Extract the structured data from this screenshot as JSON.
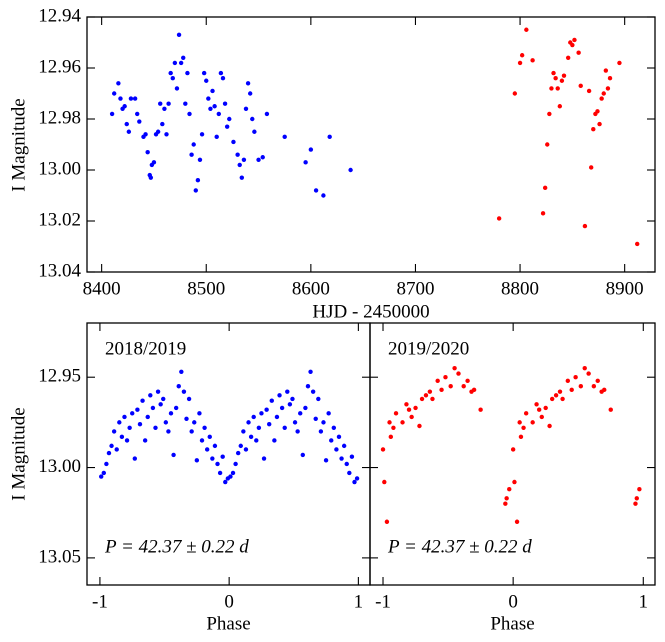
{
  "chart_data": [
    {
      "type": "scatter",
      "xlabel": "HJD - 2450000",
      "ylabel": "I Magnitude",
      "xlim": [
        8386,
        8929
      ],
      "ylim": [
        12.94,
        13.04
      ],
      "y_inverted": true,
      "xticks": [
        8400,
        8500,
        8600,
        8700,
        8800,
        8900
      ],
      "yticks": [
        12.94,
        12.96,
        12.98,
        {
          "value": 13,
          "label": "13.00"
        },
        13.02,
        13.04
      ],
      "series": [
        {
          "color": "#0000ff",
          "x": [
            8410,
            8412,
            8416,
            8418,
            8420,
            8422,
            8424,
            8426,
            8428,
            8432,
            8434,
            8436,
            8440,
            8442,
            8444,
            8446,
            8447,
            8448,
            8450,
            8452,
            8454,
            8456,
            8458,
            8460,
            8462,
            8464,
            8466,
            8468,
            8470,
            8472,
            8474,
            8476,
            8478,
            8480,
            8482,
            8484,
            8486,
            8488,
            8490,
            8492,
            8494,
            8496,
            8498,
            8500,
            8502,
            8504,
            8506,
            8508,
            8510,
            8512,
            8514,
            8516,
            8518,
            8520,
            8522,
            8526,
            8530,
            8532,
            8534,
            8536,
            8538,
            8540,
            8542,
            8544,
            8546,
            8550,
            8554,
            8558,
            8575,
            8595,
            8600,
            8605,
            8612,
            8618,
            8638
          ],
          "values": [
            12.978,
            12.97,
            12.966,
            12.972,
            12.976,
            12.975,
            12.982,
            12.985,
            12.972,
            12.972,
            12.978,
            12.981,
            12.987,
            12.986,
            12.993,
            13.002,
            13.003,
            12.998,
            12.997,
            12.986,
            12.985,
            12.974,
            12.982,
            12.976,
            12.986,
            12.974,
            12.962,
            12.964,
            12.958,
            12.968,
            12.947,
            12.958,
            12.956,
            12.974,
            12.962,
            12.978,
            12.994,
            12.99,
            13.008,
            13.004,
            12.996,
            12.986,
            12.962,
            12.965,
            12.972,
            12.976,
            12.969,
            12.975,
            12.987,
            12.978,
            12.962,
            12.964,
            12.974,
            12.983,
            12.98,
            12.989,
            12.994,
            12.998,
            13.003,
            12.996,
            12.976,
            12.966,
            12.97,
            12.98,
            12.985,
            12.996,
            12.995,
            12.978,
            12.987,
            12.997,
            12.992,
            13.008,
            13.01,
            12.987,
            13.0
          ]
        },
        {
          "color": "#ff0000",
          "x": [
            8780,
            8795,
            8800,
            8802,
            8806,
            8812,
            8822,
            8824,
            8826,
            8828,
            8830,
            8832,
            8834,
            8836,
            8838,
            8840,
            8842,
            8846,
            8848,
            8850,
            8852,
            8856,
            8858,
            8862,
            8866,
            8868,
            8870,
            8872,
            8874,
            8876,
            8878,
            8880,
            8882,
            8884,
            8886,
            8895,
            8912
          ],
          "values": [
            13.019,
            12.97,
            12.958,
            12.955,
            12.945,
            12.957,
            13.017,
            13.007,
            12.99,
            12.978,
            12.968,
            12.962,
            12.964,
            12.968,
            12.975,
            12.965,
            12.963,
            12.956,
            12.95,
            12.951,
            12.949,
            12.954,
            12.967,
            13.022,
            12.969,
            12.999,
            12.984,
            12.978,
            12.977,
            12.982,
            12.972,
            12.97,
            12.961,
            12.968,
            12.964,
            12.958,
            13.029
          ]
        }
      ]
    },
    {
      "type": "scatter",
      "xlabel": "Phase",
      "ylabel": "I Magnitude",
      "xlim": [
        -1.1,
        1.09
      ],
      "ylim": [
        12.92,
        13.065
      ],
      "y_inverted": true,
      "xticks": [
        -1,
        0,
        1
      ],
      "yticks": [
        12.95,
        {
          "value": 13,
          "label": "13.00"
        },
        13.05
      ],
      "annotations": [
        {
          "text": "2018/2019",
          "color": "#0000ff"
        },
        {
          "text": "P = 42.37 ± 0.22 d",
          "color": "#000000"
        }
      ],
      "series": [
        {
          "color": "#0000ff",
          "x": [
            -0.99,
            -0.97,
            -0.95,
            -0.93,
            -0.91,
            -0.89,
            -0.87,
            -0.85,
            -0.83,
            -0.81,
            -0.79,
            -0.77,
            -0.75,
            -0.73,
            -0.71,
            -0.69,
            -0.67,
            -0.65,
            -0.63,
            -0.61,
            -0.59,
            -0.57,
            -0.55,
            -0.53,
            -0.51,
            -0.49,
            -0.47,
            -0.45,
            -0.43,
            -0.41,
            -0.39,
            -0.37,
            -0.35,
            -0.33,
            -0.31,
            -0.29,
            -0.27,
            -0.25,
            -0.23,
            -0.21,
            -0.19,
            -0.17,
            -0.15,
            -0.13,
            -0.11,
            -0.09,
            -0.07,
            -0.05,
            -0.03,
            -0.01,
            0.01,
            0.03,
            0.05,
            0.07,
            0.09,
            0.11,
            0.13,
            0.15,
            0.17,
            0.19,
            0.21,
            0.23,
            0.25,
            0.27,
            0.29,
            0.31,
            0.33,
            0.35,
            0.37,
            0.39,
            0.41,
            0.43,
            0.45,
            0.47,
            0.49,
            0.51,
            0.53,
            0.55,
            0.57,
            0.59,
            0.61,
            0.63,
            0.65,
            0.67,
            0.69,
            0.71,
            0.73,
            0.75,
            0.77,
            0.79,
            0.81,
            0.83,
            0.85,
            0.87,
            0.89,
            0.91,
            0.93,
            0.95,
            0.97,
            0.99
          ],
          "values": [
            13.005,
            13.003,
            12.998,
            12.992,
            12.988,
            12.98,
            12.99,
            12.975,
            12.983,
            12.972,
            12.985,
            12.978,
            12.97,
            12.995,
            12.968,
            12.976,
            12.963,
            12.985,
            12.972,
            12.96,
            12.967,
            12.978,
            12.958,
            12.965,
            12.962,
            12.975,
            12.98,
            12.97,
            12.993,
            12.967,
            12.955,
            12.947,
            12.958,
            12.973,
            12.962,
            12.98,
            12.975,
            12.996,
            12.97,
            12.985,
            12.978,
            12.99,
            12.983,
            12.995,
            12.988,
            12.998,
            13.003,
            12.994,
            13.008,
            13.006,
            13.005,
            13.003,
            12.998,
            12.992,
            12.988,
            12.98,
            12.99,
            12.975,
            12.983,
            12.972,
            12.985,
            12.978,
            12.97,
            12.995,
            12.968,
            12.976,
            12.963,
            12.985,
            12.972,
            12.96,
            12.967,
            12.978,
            12.958,
            12.965,
            12.962,
            12.975,
            12.98,
            12.97,
            12.993,
            12.967,
            12.955,
            12.947,
            12.958,
            12.973,
            12.962,
            12.98,
            12.975,
            12.996,
            12.97,
            12.985,
            12.978,
            12.99,
            12.983,
            12.995,
            12.988,
            12.998,
            13.003,
            12.994,
            13.008,
            13.006
          ]
        }
      ]
    },
    {
      "type": "scatter",
      "xlabel": "Phase",
      "ytick_labels": false,
      "xlim": [
        -1.1,
        1.09
      ],
      "ylim": [
        12.92,
        13.065
      ],
      "y_inverted": true,
      "xticks": [
        -1,
        0,
        1
      ],
      "yticks": [
        12.95,
        13,
        13.05
      ],
      "annotations": [
        {
          "text": "2019/2020",
          "color": "#ff0000"
        },
        {
          "text": "P = 42.37 ± 0.22 d",
          "color": "#000000"
        }
      ],
      "series": [
        {
          "color": "#ff0000",
          "x": [
            -1,
            -0.99,
            -0.97,
            -0.95,
            -0.94,
            -0.92,
            -0.9,
            -0.85,
            -0.82,
            -0.8,
            -0.78,
            -0.75,
            -0.72,
            -0.7,
            -0.67,
            -0.64,
            -0.62,
            -0.58,
            -0.55,
            -0.52,
            -0.48,
            -0.45,
            -0.42,
            -0.38,
            -0.35,
            -0.32,
            -0.3,
            -0.25,
            -0.06,
            -0.05,
            -0.03,
            0,
            0.01,
            0.03,
            0.05,
            0.06,
            0.08,
            0.1,
            0.15,
            0.18,
            0.2,
            0.22,
            0.25,
            0.28,
            0.3,
            0.33,
            0.36,
            0.38,
            0.42,
            0.45,
            0.48,
            0.52,
            0.55,
            0.58,
            0.62,
            0.65,
            0.68,
            0.7,
            0.75,
            0.94,
            0.95,
            0.97
          ],
          "values": [
            12.99,
            13.008,
            13.03,
            12.975,
            12.983,
            12.978,
            12.97,
            12.975,
            12.965,
            12.968,
            12.972,
            12.967,
            12.977,
            12.962,
            12.96,
            12.958,
            12.962,
            12.952,
            12.957,
            12.95,
            12.955,
            12.945,
            12.948,
            12.955,
            12.952,
            12.958,
            12.957,
            12.968,
            13.02,
            13.017,
            13.012,
            12.99,
            13.008,
            13.03,
            12.975,
            12.983,
            12.978,
            12.97,
            12.975,
            12.965,
            12.968,
            12.972,
            12.967,
            12.977,
            12.962,
            12.96,
            12.958,
            12.962,
            12.952,
            12.957,
            12.95,
            12.955,
            12.945,
            12.948,
            12.955,
            12.952,
            12.958,
            12.957,
            12.968,
            13.02,
            13.017,
            13.012
          ]
        }
      ]
    }
  ]
}
